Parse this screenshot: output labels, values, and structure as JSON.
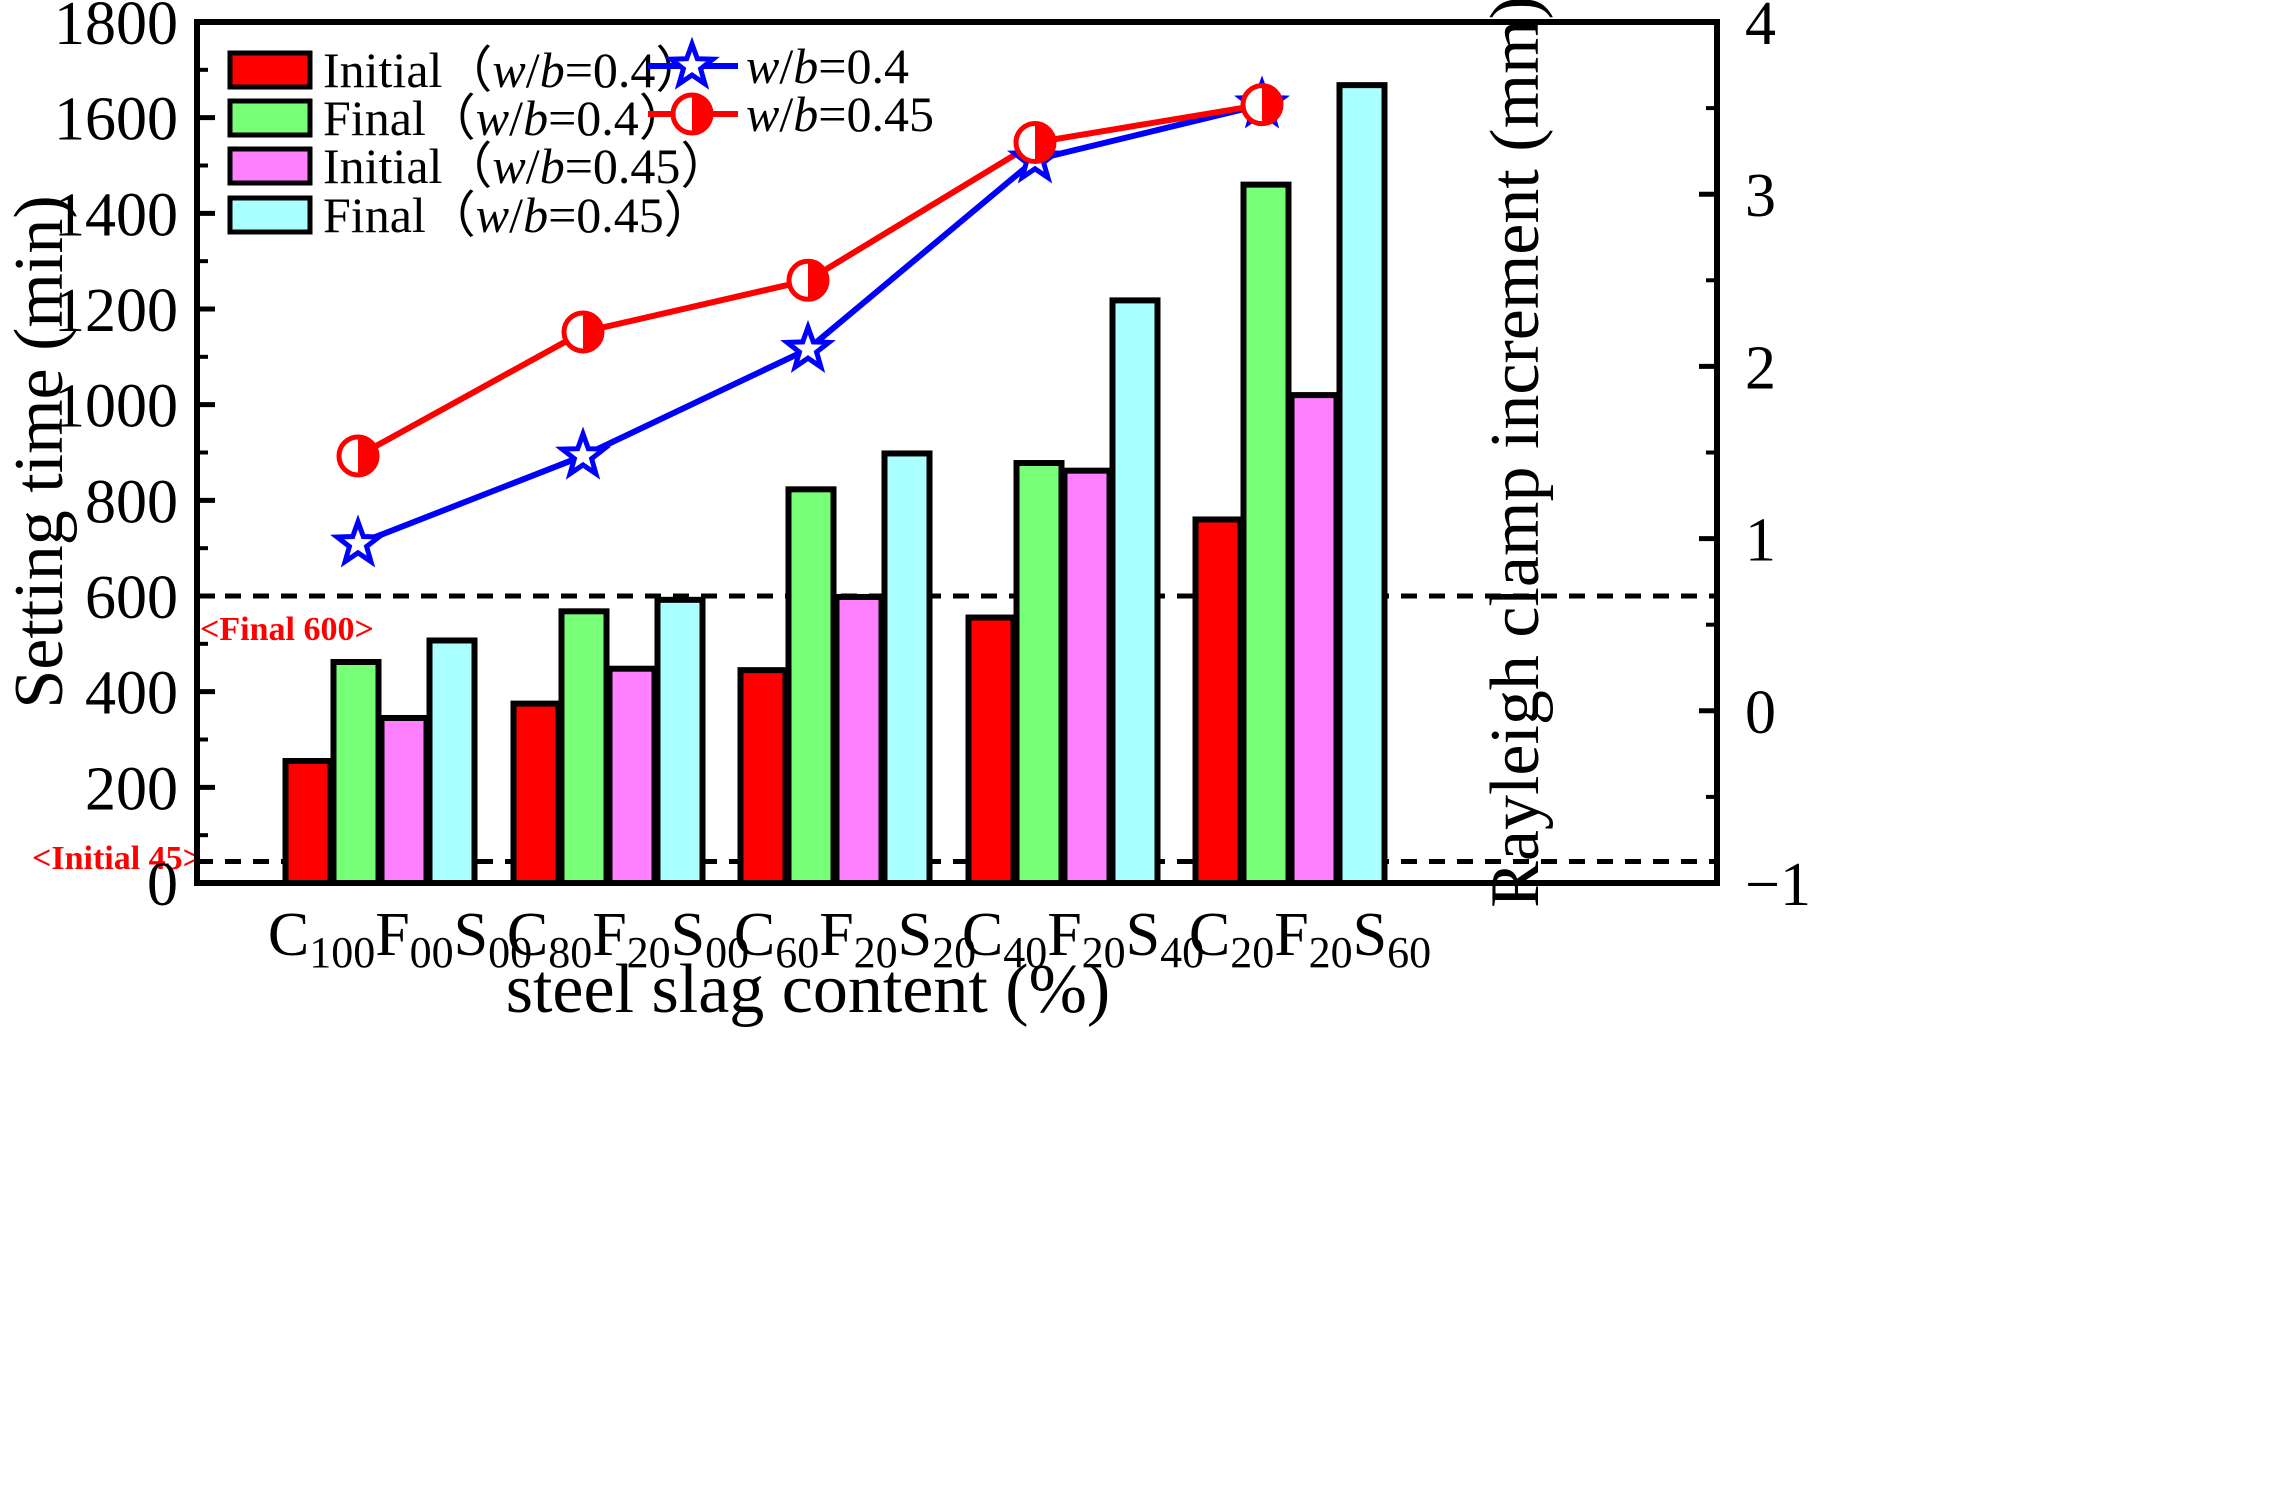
{
  "chart_data": {
    "type": "bar",
    "categories": [
      {
        "base": "C",
        "s1": "100",
        "mid1": "F",
        "s2": "00",
        "mid2": "S",
        "s3": "00"
      },
      {
        "base": "C",
        "s1": "80",
        "mid1": "F",
        "s2": "20",
        "mid2": "S",
        "s3": "00"
      },
      {
        "base": "C",
        "s1": "60",
        "mid1": "F",
        "s2": "20",
        "mid2": "S",
        "s3": "20"
      },
      {
        "base": "C",
        "s1": "40",
        "mid1": "F",
        "s2": "20",
        "mid2": "S",
        "s3": "40"
      },
      {
        "base": "C",
        "s1": "20",
        "mid1": "F",
        "s2": "20",
        "mid2": "S",
        "s3": "60"
      }
    ],
    "series": [
      {
        "name": "Initial",
        "wb": "0.4",
        "color": "#ff0000",
        "values": [
          255,
          375,
          445,
          555,
          760
        ]
      },
      {
        "name": "Final",
        "wb": "0.4",
        "color": "#77ff77",
        "values": [
          462,
          568,
          823,
          878,
          1460
        ]
      },
      {
        "name": "Initial",
        "wb": "0.45",
        "color": "#ff80ff",
        "values": [
          345,
          448,
          598,
          862,
          1020
        ]
      },
      {
        "name": "Final",
        "wb": "0.45",
        "color": "#aaffff",
        "values": [
          507,
          592,
          898,
          1218,
          1668
        ]
      }
    ],
    "line_series": [
      {
        "wb": "0.4",
        "color": "#0000ff",
        "marker": "star",
        "values": [
          0.97,
          1.48,
          2.1,
          3.2,
          3.52
        ]
      },
      {
        "wb": "0.45",
        "color": "#ff0000",
        "marker": "half-circle",
        "values": [
          1.48,
          2.2,
          2.5,
          3.3,
          3.52
        ]
      }
    ],
    "xlabel": "steel slag content (%)",
    "ylabel": "Setting time (min)",
    "y2label": "Rayleigh clamp increment (mm)",
    "ylim": [
      0,
      1800
    ],
    "y2lim": [
      -1,
      4
    ],
    "yticks": [
      0,
      200,
      400,
      600,
      800,
      1000,
      1200,
      1400,
      1600,
      1800
    ],
    "y2ticks": [
      -1,
      0,
      1,
      2,
      3,
      4
    ],
    "reference_lines": [
      {
        "value": 600,
        "label": "<Final 600>"
      },
      {
        "value": 45,
        "label": "<Initial 45>"
      }
    ],
    "wb_prefix": "w/b="
  }
}
